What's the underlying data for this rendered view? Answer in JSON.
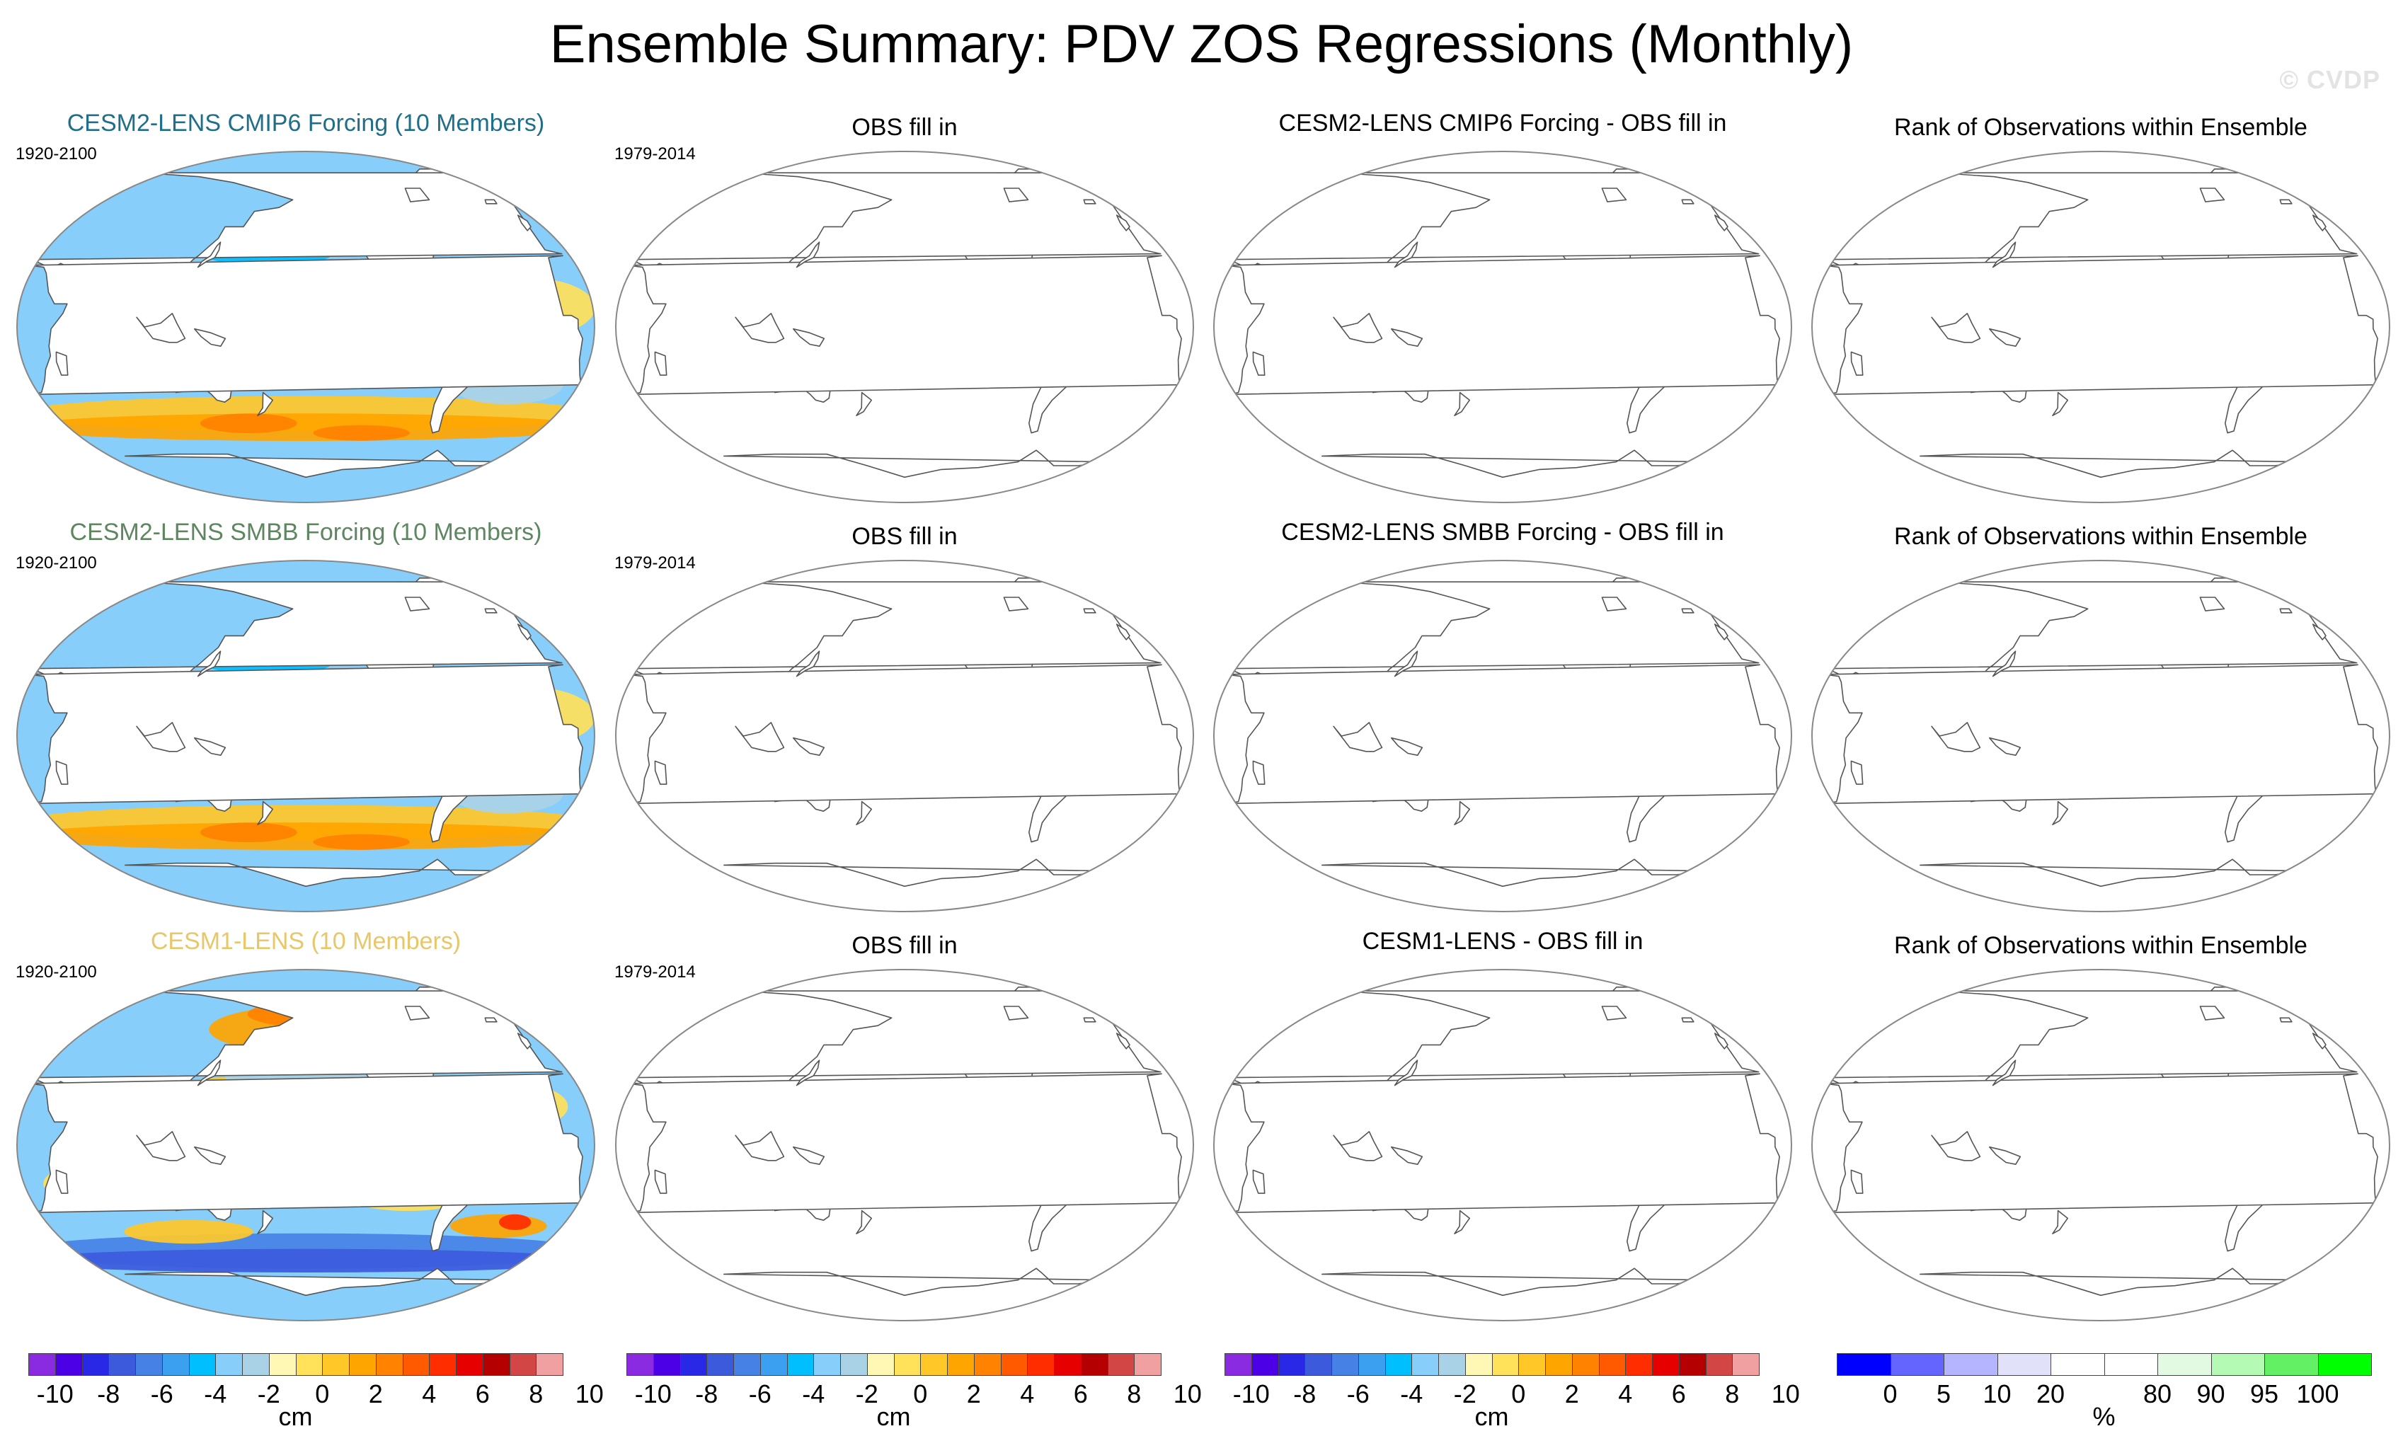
{
  "title": "Ensemble Summary: PDV ZOS Regressions (Monthly)",
  "watermark": "© CVDP",
  "colors": {
    "title_row1": "#1f6f8b",
    "title_row2": "#5e8660",
    "title_row3": "#e8c76a",
    "land": "#ffffff",
    "coast": "#555555"
  },
  "rows": [
    {
      "model_title": "CESM2-LENS CMIP6 Forcing (10 Members)",
      "model_period": "1920-2100",
      "obs_title": "OBS fill in",
      "obs_period": "1979-2014",
      "diff_title": "CESM2-LENS CMIP6 Forcing - OBS fill in",
      "rank_title": "Rank of Observations within Ensemble",
      "pattern": "cesm2"
    },
    {
      "model_title": "CESM2-LENS SMBB Forcing (10 Members)",
      "model_period": "1920-2100",
      "obs_title": "OBS fill in",
      "obs_period": "1979-2014",
      "diff_title": "CESM2-LENS SMBB Forcing - OBS fill in",
      "rank_title": "Rank of Observations within Ensemble",
      "pattern": "cesm2"
    },
    {
      "model_title": "CESM1-LENS (10 Members)",
      "model_period": "1920-2100",
      "obs_title": "OBS fill in",
      "obs_period": "1979-2014",
      "diff_title": "CESM1-LENS - OBS fill in",
      "rank_title": "Rank of Observations within Ensemble",
      "pattern": "cesm1"
    }
  ],
  "colorbar_zos": {
    "units": "cm",
    "colors": [
      "#8a2be2",
      "#4b00e6",
      "#2828e6",
      "#3c5adc",
      "#4682e6",
      "#3ca0f0",
      "#00bfff",
      "#87cefa",
      "#aad2e6",
      "#fff8b4",
      "#ffe15a",
      "#ffc828",
      "#ffa500",
      "#ff8200",
      "#ff5a00",
      "#ff2d00",
      "#e60000",
      "#b40000",
      "#d24646",
      "#f0a0a0"
    ],
    "ticks": [
      "-10",
      "-8",
      "-6",
      "-4",
      "-2",
      "0",
      "2",
      "4",
      "6",
      "8",
      "10"
    ]
  },
  "colorbar_rank": {
    "units": "%",
    "colors": [
      "#0000ff",
      "#6464ff",
      "#b4b4ff",
      "#e1e1fa",
      "#ffffff",
      "#ffffff",
      "#e1fae1",
      "#b4fab4",
      "#64f064",
      "#00ff00"
    ],
    "ticks": [
      "0",
      "5",
      "10",
      "20",
      "80",
      "90",
      "95",
      "100"
    ]
  }
}
